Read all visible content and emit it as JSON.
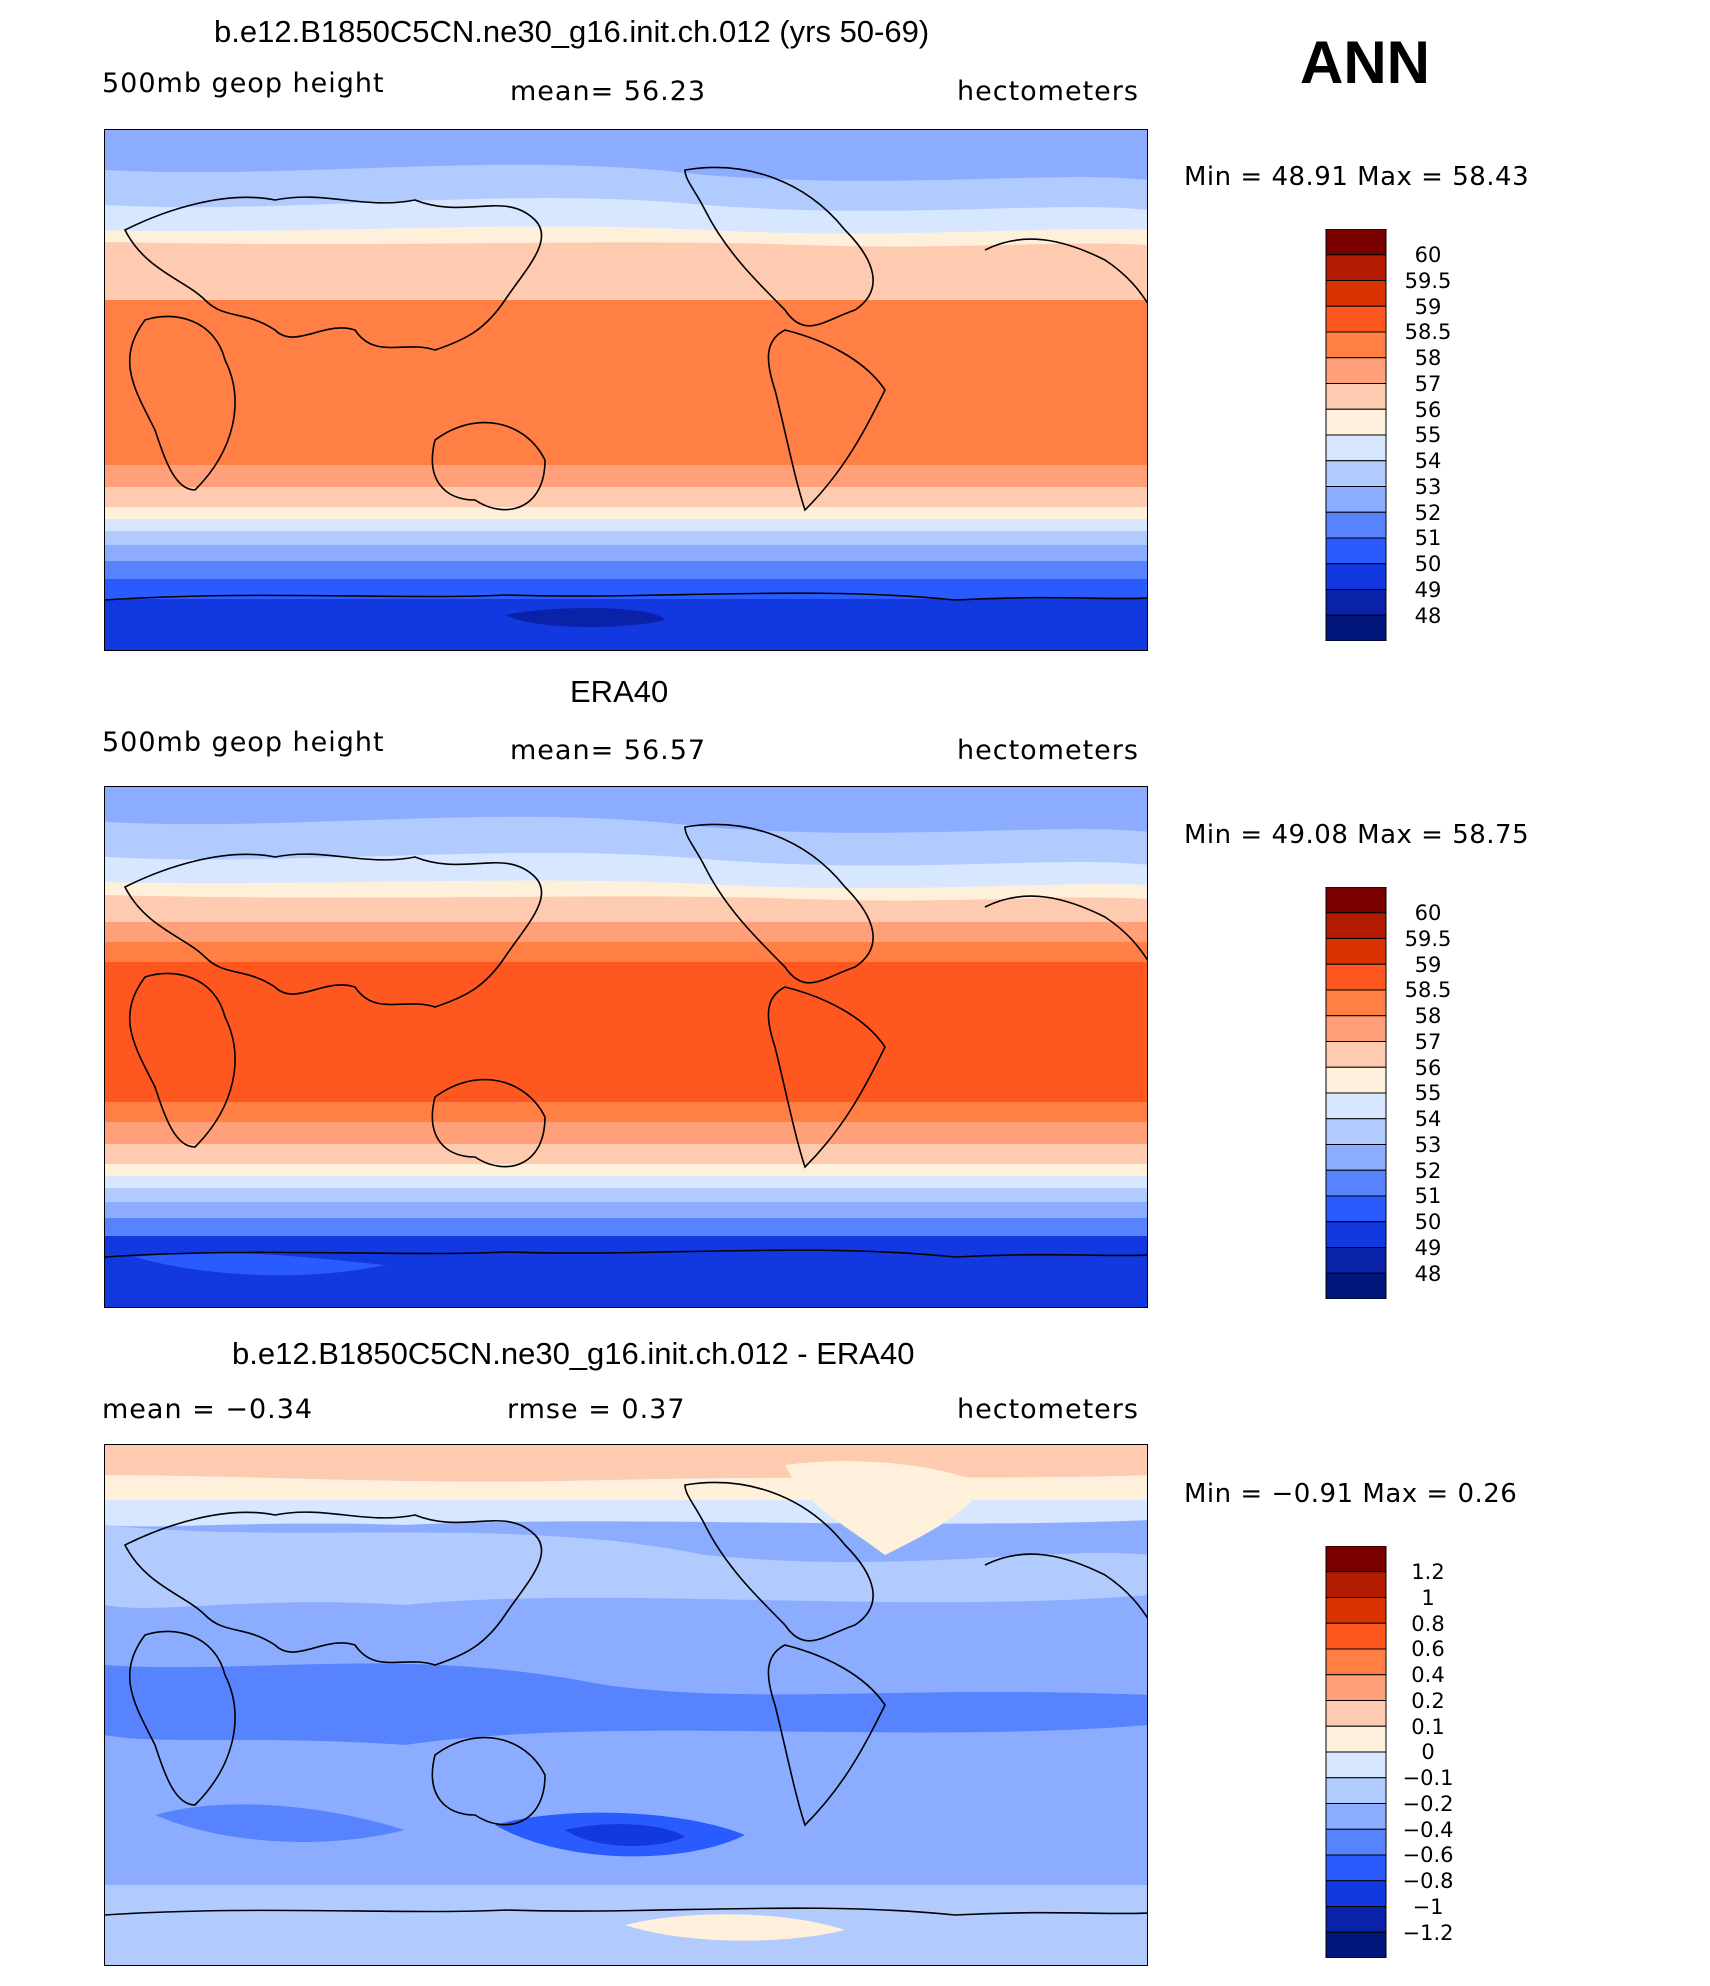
{
  "season": "ANN",
  "panels": [
    {
      "title": "b.e12.B1850C5CN.ne30_g16.init.ch.012 (yrs 50-69)",
      "left_label": "500mb  geop  height",
      "mid_label": "mean=   56.23",
      "right_label": "hectometers",
      "minmax": "Min  =    48.91  Max  =    58.43",
      "colorbar_labels": [
        "60",
        "59.5",
        "59",
        "58.5",
        "58",
        "57",
        "56",
        "55",
        "54",
        "53",
        "52",
        "51",
        "50",
        "49",
        "48"
      ]
    },
    {
      "title": "ERA40",
      "left_label": "500mb  geop  height",
      "mid_label": "mean=   56.57",
      "right_label": "hectometers",
      "minmax": "Min  =    49.08  Max  =    58.75",
      "colorbar_labels": [
        "60",
        "59.5",
        "59",
        "58.5",
        "58",
        "57",
        "56",
        "55",
        "54",
        "53",
        "52",
        "51",
        "50",
        "49",
        "48"
      ]
    },
    {
      "title": "b.e12.B1850C5CN.ne30_g16.init.ch.012 - ERA40",
      "left_label": "mean  =   −0.34",
      "mid_label": "rmse  =     0.37",
      "right_label": "hectometers",
      "minmax": "Min  =   −0.91  Max  =     0.26",
      "colorbar_labels": [
        "1.2",
        "1",
        "0.8",
        "0.6",
        "0.4",
        "0.2",
        "0.1",
        "0",
        "−0.1",
        "−0.2",
        "−0.4",
        "−0.6",
        "−0.8",
        "−1",
        "−1.2"
      ]
    }
  ],
  "colors": {
    "scale": [
      "#7a0000",
      "#b31b00",
      "#d93300",
      "#ff5720",
      "#ff7f45",
      "#ffa07a",
      "#ffcbb0",
      "#fff0dc",
      "#d7e7ff",
      "#b2cbff",
      "#8cadff",
      "#5883ff",
      "#2a5bff",
      "#1238e0",
      "#0a22a8",
      "#00167a"
    ]
  }
}
